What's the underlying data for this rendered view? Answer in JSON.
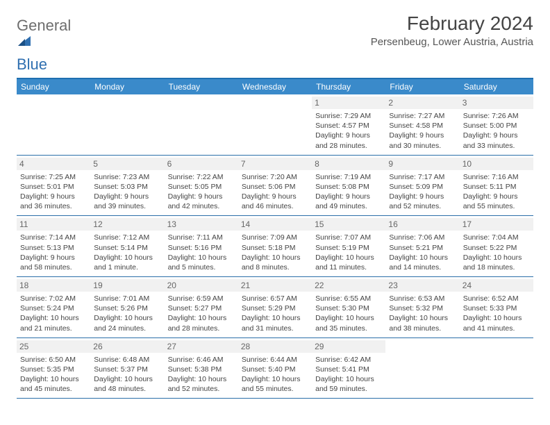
{
  "brand": {
    "part1": "General",
    "part2": "Blue"
  },
  "title": "February 2024",
  "location": "Persenbeug, Lower Austria, Austria",
  "colors": {
    "header_bg": "#3a8aca",
    "header_text": "#ffffff",
    "rule": "#2a6ea8",
    "daynum_bg": "#f1f1f1",
    "text": "#444444",
    "brand_gray": "#6d6d6d",
    "brand_blue": "#2f6fb0"
  },
  "columns": [
    "Sunday",
    "Monday",
    "Tuesday",
    "Wednesday",
    "Thursday",
    "Friday",
    "Saturday"
  ],
  "weeks": [
    [
      null,
      null,
      null,
      null,
      {
        "n": "1",
        "r": "7:29 AM",
        "s": "4:57 PM",
        "d": "9 hours and 28 minutes."
      },
      {
        "n": "2",
        "r": "7:27 AM",
        "s": "4:58 PM",
        "d": "9 hours and 30 minutes."
      },
      {
        "n": "3",
        "r": "7:26 AM",
        "s": "5:00 PM",
        "d": "9 hours and 33 minutes."
      }
    ],
    [
      {
        "n": "4",
        "r": "7:25 AM",
        "s": "5:01 PM",
        "d": "9 hours and 36 minutes."
      },
      {
        "n": "5",
        "r": "7:23 AM",
        "s": "5:03 PM",
        "d": "9 hours and 39 minutes."
      },
      {
        "n": "6",
        "r": "7:22 AM",
        "s": "5:05 PM",
        "d": "9 hours and 42 minutes."
      },
      {
        "n": "7",
        "r": "7:20 AM",
        "s": "5:06 PM",
        "d": "9 hours and 46 minutes."
      },
      {
        "n": "8",
        "r": "7:19 AM",
        "s": "5:08 PM",
        "d": "9 hours and 49 minutes."
      },
      {
        "n": "9",
        "r": "7:17 AM",
        "s": "5:09 PM",
        "d": "9 hours and 52 minutes."
      },
      {
        "n": "10",
        "r": "7:16 AM",
        "s": "5:11 PM",
        "d": "9 hours and 55 minutes."
      }
    ],
    [
      {
        "n": "11",
        "r": "7:14 AM",
        "s": "5:13 PM",
        "d": "9 hours and 58 minutes."
      },
      {
        "n": "12",
        "r": "7:12 AM",
        "s": "5:14 PM",
        "d": "10 hours and 1 minute."
      },
      {
        "n": "13",
        "r": "7:11 AM",
        "s": "5:16 PM",
        "d": "10 hours and 5 minutes."
      },
      {
        "n": "14",
        "r": "7:09 AM",
        "s": "5:18 PM",
        "d": "10 hours and 8 minutes."
      },
      {
        "n": "15",
        "r": "7:07 AM",
        "s": "5:19 PM",
        "d": "10 hours and 11 minutes."
      },
      {
        "n": "16",
        "r": "7:06 AM",
        "s": "5:21 PM",
        "d": "10 hours and 14 minutes."
      },
      {
        "n": "17",
        "r": "7:04 AM",
        "s": "5:22 PM",
        "d": "10 hours and 18 minutes."
      }
    ],
    [
      {
        "n": "18",
        "r": "7:02 AM",
        "s": "5:24 PM",
        "d": "10 hours and 21 minutes."
      },
      {
        "n": "19",
        "r": "7:01 AM",
        "s": "5:26 PM",
        "d": "10 hours and 24 minutes."
      },
      {
        "n": "20",
        "r": "6:59 AM",
        "s": "5:27 PM",
        "d": "10 hours and 28 minutes."
      },
      {
        "n": "21",
        "r": "6:57 AM",
        "s": "5:29 PM",
        "d": "10 hours and 31 minutes."
      },
      {
        "n": "22",
        "r": "6:55 AM",
        "s": "5:30 PM",
        "d": "10 hours and 35 minutes."
      },
      {
        "n": "23",
        "r": "6:53 AM",
        "s": "5:32 PM",
        "d": "10 hours and 38 minutes."
      },
      {
        "n": "24",
        "r": "6:52 AM",
        "s": "5:33 PM",
        "d": "10 hours and 41 minutes."
      }
    ],
    [
      {
        "n": "25",
        "r": "6:50 AM",
        "s": "5:35 PM",
        "d": "10 hours and 45 minutes."
      },
      {
        "n": "26",
        "r": "6:48 AM",
        "s": "5:37 PM",
        "d": "10 hours and 48 minutes."
      },
      {
        "n": "27",
        "r": "6:46 AM",
        "s": "5:38 PM",
        "d": "10 hours and 52 minutes."
      },
      {
        "n": "28",
        "r": "6:44 AM",
        "s": "5:40 PM",
        "d": "10 hours and 55 minutes."
      },
      {
        "n": "29",
        "r": "6:42 AM",
        "s": "5:41 PM",
        "d": "10 hours and 59 minutes."
      },
      null,
      null
    ]
  ],
  "labels": {
    "sunrise": "Sunrise:",
    "sunset": "Sunset:",
    "daylight": "Daylight:"
  }
}
